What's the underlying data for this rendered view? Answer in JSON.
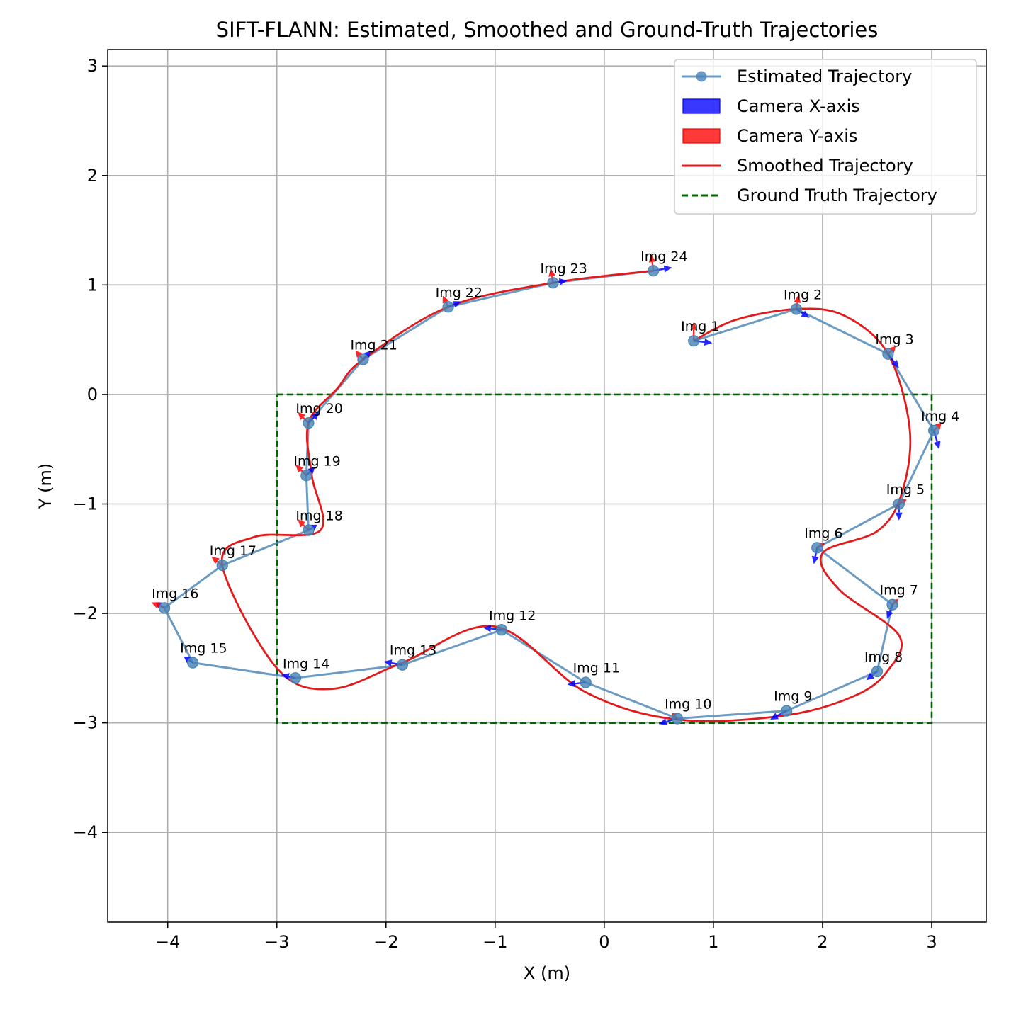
{
  "chart_data": {
    "type": "line",
    "title": "SIFT-FLANN: Estimated, Smoothed and Ground-Truth Trajectories",
    "xlabel": "X (m)",
    "ylabel": "Y (m)",
    "xlim": [
      -4.55,
      3.5
    ],
    "ylim": [
      -4.82,
      3.15
    ],
    "xticks": [
      -4,
      -3,
      -2,
      -1,
      0,
      1,
      2,
      3
    ],
    "yticks": [
      -4,
      -3,
      -2,
      -1,
      0,
      1,
      2,
      3
    ],
    "xtick_labels": [
      "−4",
      "−3",
      "−2",
      "−1",
      "0",
      "1",
      "2",
      "3"
    ],
    "ytick_labels": [
      "−4",
      "−3",
      "−2",
      "−1",
      "0",
      "1",
      "2",
      "3"
    ],
    "grid": true,
    "legend_position": "top-right",
    "legend": [
      {
        "label": "Estimated Trajectory",
        "kind": "line-marker",
        "color": "#4682b4"
      },
      {
        "label": "Camera X-axis",
        "kind": "patch",
        "color": "#0000ff"
      },
      {
        "label": "Camera Y-axis",
        "kind": "patch",
        "color": "#ff0000"
      },
      {
        "label": "Smoothed Trajectory",
        "kind": "line",
        "color": "#e31a1c"
      },
      {
        "label": "Ground Truth Trajectory",
        "kind": "dashed",
        "color": "#006400"
      }
    ],
    "series": [
      {
        "name": "Estimated Trajectory",
        "color": "#4682b4",
        "points": [
          {
            "label": "Img 1",
            "x": 0.82,
            "y": 0.49
          },
          {
            "label": "Img 2",
            "x": 1.76,
            "y": 0.78
          },
          {
            "label": "Img 3",
            "x": 2.6,
            "y": 0.37
          },
          {
            "label": "Img 4",
            "x": 3.02,
            "y": -0.33
          },
          {
            "label": "Img 5",
            "x": 2.7,
            "y": -1.0
          },
          {
            "label": "Img 6",
            "x": 1.95,
            "y": -1.4
          },
          {
            "label": "Img 7",
            "x": 2.64,
            "y": -1.92
          },
          {
            "label": "Img 8",
            "x": 2.5,
            "y": -2.53
          },
          {
            "label": "Img 9",
            "x": 1.67,
            "y": -2.89
          },
          {
            "label": "Img 10",
            "x": 0.67,
            "y": -2.96
          },
          {
            "label": "Img 11",
            "x": -0.17,
            "y": -2.63
          },
          {
            "label": "Img 12",
            "x": -0.94,
            "y": -2.15
          },
          {
            "label": "Img 13",
            "x": -1.85,
            "y": -2.47
          },
          {
            "label": "Img 14",
            "x": -2.83,
            "y": -2.59
          },
          {
            "label": "Img 15",
            "x": -3.77,
            "y": -2.45
          },
          {
            "label": "Img 16",
            "x": -4.03,
            "y": -1.95
          },
          {
            "label": "Img 17",
            "x": -3.5,
            "y": -1.56
          },
          {
            "label": "Img 18",
            "x": -2.71,
            "y": -1.24
          },
          {
            "label": "Img 19",
            "x": -2.73,
            "y": -0.74
          },
          {
            "label": "Img 20",
            "x": -2.71,
            "y": -0.26
          },
          {
            "label": "Img 21",
            "x": -2.21,
            "y": 0.32
          },
          {
            "label": "Img 22",
            "x": -1.43,
            "y": 0.8
          },
          {
            "label": "Img 23",
            "x": -0.47,
            "y": 1.02
          },
          {
            "label": "Img 24",
            "x": 0.45,
            "y": 1.13
          }
        ]
      },
      {
        "name": "Smoothed Trajectory",
        "color": "#e31a1c",
        "x": [
          0.82,
          1.2,
          1.76,
          2.2,
          2.6,
          2.8,
          2.72,
          2.5,
          2.0,
          2.15,
          2.7,
          2.6,
          2.3,
          1.67,
          0.67,
          -0.17,
          -1.0,
          -1.85,
          -2.5,
          -3.0,
          -3.5,
          -3.2,
          -2.6,
          -2.68,
          -2.71,
          -2.45,
          -2.21,
          -1.43,
          -0.47,
          0.45
        ],
        "y": [
          0.49,
          0.68,
          0.78,
          0.72,
          0.37,
          -0.33,
          -0.92,
          -1.25,
          -1.45,
          -1.78,
          -2.2,
          -2.52,
          -2.75,
          -2.93,
          -2.97,
          -2.72,
          -2.12,
          -2.45,
          -2.69,
          -2.5,
          -1.56,
          -1.3,
          -1.24,
          -0.74,
          -0.26,
          0.05,
          0.32,
          0.8,
          1.02,
          1.13
        ]
      },
      {
        "name": "Ground Truth Trajectory",
        "color": "#006400",
        "x": [
          -3,
          3,
          3,
          -3,
          -3
        ],
        "y": [
          0,
          0,
          -3,
          -3,
          0
        ]
      }
    ],
    "camera_axes": [
      {
        "xdir": [
          0.17,
          -0.02
        ],
        "ydir": [
          0.0,
          0.17
        ]
      },
      {
        "xdir": [
          0.12,
          -0.08
        ],
        "ydir": [
          0.02,
          0.13
        ]
      },
      {
        "xdir": [
          0.1,
          -0.13
        ],
        "ydir": [
          0.07,
          0.07
        ]
      },
      {
        "xdir": [
          0.05,
          -0.17
        ],
        "ydir": [
          0.07,
          0.07
        ]
      },
      {
        "xdir": [
          0.0,
          -0.15
        ],
        "ydir": [
          0.07,
          0.04
        ]
      },
      {
        "xdir": [
          -0.03,
          -0.15
        ],
        "ydir": [
          0.07,
          0.04
        ]
      },
      {
        "xdir": [
          -0.05,
          -0.13
        ],
        "ydir": [
          0.05,
          0.05
        ]
      },
      {
        "xdir": [
          -0.1,
          -0.08
        ],
        "ydir": [
          0.0,
          0.0
        ]
      },
      {
        "xdir": [
          -0.15,
          -0.08
        ],
        "ydir": [
          0.0,
          0.0
        ]
      },
      {
        "xdir": [
          -0.17,
          -0.05
        ],
        "ydir": [
          -0.05,
          0.05
        ]
      },
      {
        "xdir": [
          -0.17,
          -0.02
        ],
        "ydir": [
          0.0,
          0.0
        ]
      },
      {
        "xdir": [
          -0.17,
          0.02
        ],
        "ydir": [
          0.0,
          0.0
        ]
      },
      {
        "xdir": [
          -0.17,
          0.03
        ],
        "ydir": [
          0.0,
          0.0
        ]
      },
      {
        "xdir": [
          -0.13,
          0.03
        ],
        "ydir": [
          0.0,
          0.0
        ]
      },
      {
        "xdir": [
          -0.08,
          0.05
        ],
        "ydir": [
          0.0,
          0.0
        ]
      },
      {
        "xdir": [
          -0.08,
          0.05
        ],
        "ydir": [
          -0.12,
          0.05
        ]
      },
      {
        "xdir": [
          0.0,
          0.0
        ],
        "ydir": [
          -0.1,
          0.08
        ]
      },
      {
        "xdir": [
          0.08,
          0.05
        ],
        "ydir": [
          -0.1,
          0.1
        ]
      },
      {
        "xdir": [
          0.08,
          0.08
        ],
        "ydir": [
          -0.1,
          0.1
        ]
      },
      {
        "xdir": [
          0.1,
          0.1
        ],
        "ydir": [
          -0.1,
          0.1
        ]
      },
      {
        "xdir": [
          0.07,
          0.08
        ],
        "ydir": [
          -0.07,
          0.08
        ]
      },
      {
        "xdir": [
          0.12,
          0.05
        ],
        "ydir": [
          -0.05,
          0.1
        ]
      },
      {
        "xdir": [
          0.13,
          0.02
        ],
        "ydir": [
          -0.02,
          0.13
        ]
      },
      {
        "xdir": [
          0.17,
          0.03
        ],
        "ydir": [
          -0.02,
          0.15
        ]
      }
    ]
  }
}
